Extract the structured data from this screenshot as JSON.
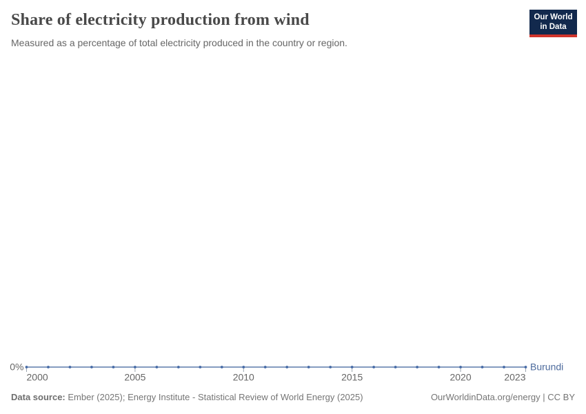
{
  "header": {
    "title": "Share of electricity production from wind",
    "subtitle": "Measured as a percentage of total electricity produced in the country or region.",
    "logo": {
      "line1": "Our World",
      "line2": "in Data"
    }
  },
  "footer": {
    "data_source_label": "Data source:",
    "data_source_text": " Ember (2025); Energy Institute - Statistical Review of World Energy (2025)",
    "attribution": "OurWorldinData.org/energy | CC BY"
  },
  "colors": {
    "line": "#5b7aab",
    "point": "#4469a5",
    "entity_label": "#4c6a9c",
    "axis_text": "#666666",
    "tick": "#9aa4ae",
    "logo_bg": "#12294d",
    "logo_accent": "#d0342c"
  },
  "chart_data": {
    "type": "line",
    "title": "Share of electricity production from wind",
    "xlabel": "",
    "ylabel": "",
    "x_ticks": [
      2000,
      2005,
      2010,
      2015,
      2020,
      2023
    ],
    "xlim": [
      2000,
      2023
    ],
    "y_tick_labels": [
      "0%"
    ],
    "ylim": [
      0,
      0
    ],
    "grid": false,
    "legend_position": "end-of-line",
    "series": [
      {
        "name": "Burundi",
        "x": [
          2000,
          2001,
          2002,
          2003,
          2004,
          2005,
          2006,
          2007,
          2008,
          2009,
          2010,
          2011,
          2012,
          2013,
          2014,
          2015,
          2016,
          2017,
          2018,
          2019,
          2020,
          2021,
          2022,
          2023
        ],
        "values": [
          0,
          0,
          0,
          0,
          0,
          0,
          0,
          0,
          0,
          0,
          0,
          0,
          0,
          0,
          0,
          0,
          0,
          0,
          0,
          0,
          0,
          0,
          0,
          0
        ]
      }
    ]
  }
}
